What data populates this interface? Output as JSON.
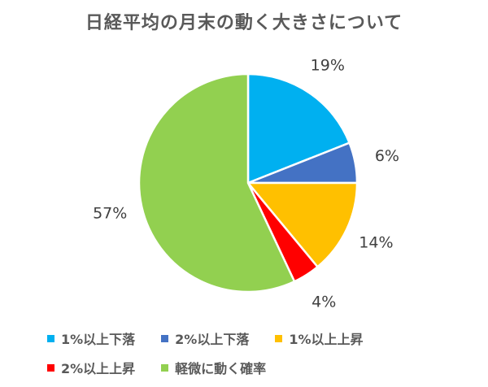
{
  "chart_data": {
    "type": "pie",
    "title": "日経平均の月末の動く大きさについて",
    "categories": [
      "1%以上下落",
      "2%以上下落",
      "1%以上上昇",
      "2%以上上昇",
      "軽微に動く確率"
    ],
    "values": [
      19,
      6,
      14,
      4,
      57
    ],
    "data_labels": [
      "19%",
      "6%",
      "14%",
      "4%",
      "57%"
    ],
    "colors": [
      "#00b0f0",
      "#4472c4",
      "#ffc000",
      "#ff0000",
      "#92d050"
    ],
    "legend_placement": "bottom"
  }
}
